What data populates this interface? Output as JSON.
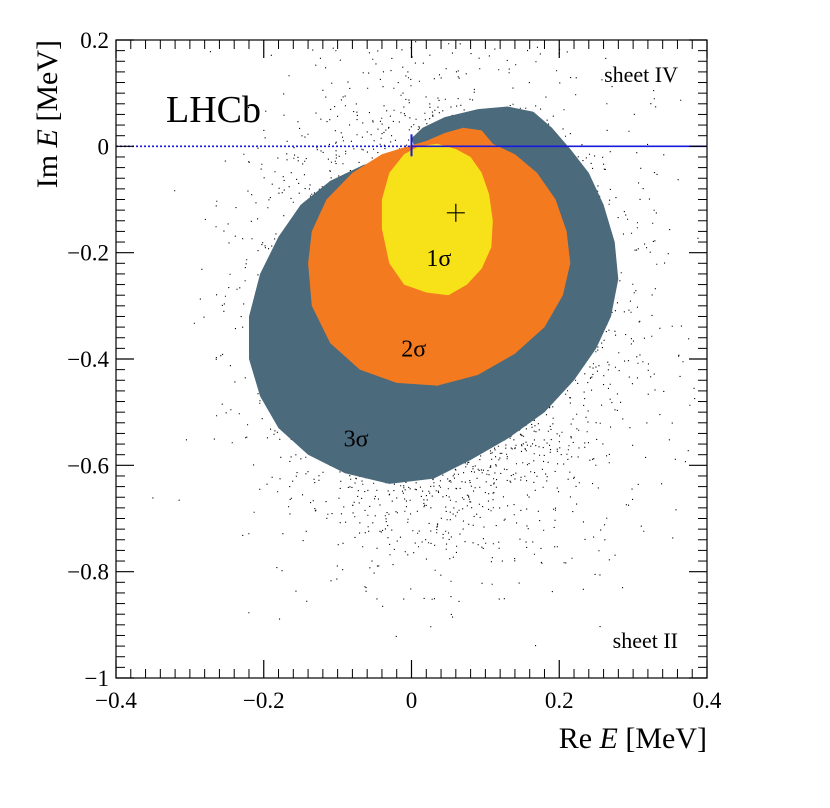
{
  "chart_data": {
    "type": "scatter",
    "title": "",
    "experiment_label": "LHCb",
    "xlabel_prefix": "Re ",
    "xlabel_var": "E",
    "xlabel_unit": " [MeV]",
    "ylabel_prefix": "Im ",
    "ylabel_var": "E",
    "ylabel_unit": " [MeV]",
    "xlim": [
      -0.4,
      0.4
    ],
    "ylim": [
      -1.0,
      0.2
    ],
    "x_ticks": [
      -0.4,
      -0.2,
      0,
      0.2,
      0.4
    ],
    "x_tick_labels": [
      "−0.4",
      "−0.2",
      "0",
      "0.2",
      "0.4"
    ],
    "y_ticks": [
      0.2,
      0,
      -0.2,
      -0.4,
      -0.6,
      -0.8,
      -1.0
    ],
    "y_tick_labels": [
      "0.2",
      "0",
      "−0.2",
      "−0.4",
      "−0.6",
      "−0.8",
      "−1"
    ],
    "sheet_labels": {
      "upper": "sheet IV",
      "lower": "sheet II"
    },
    "best_fit": {
      "x": 0.06,
      "y": -0.125
    },
    "threshold": {
      "x": 0.0,
      "y": 0.0
    },
    "cut_line": {
      "y": 0.0,
      "dotted_range": [
        -0.4,
        0.0
      ],
      "solid_range": [
        0.0,
        0.4
      ]
    },
    "contours": [
      {
        "name": "3σ",
        "label": "3σ",
        "color": "#4b6a7c",
        "label_pos": [
          -0.075,
          -0.565
        ],
        "points": [
          [
            -0.22,
            -0.4
          ],
          [
            -0.22,
            -0.32
          ],
          [
            -0.205,
            -0.24
          ],
          [
            -0.18,
            -0.17
          ],
          [
            -0.15,
            -0.11
          ],
          [
            -0.11,
            -0.065
          ],
          [
            -0.065,
            -0.035
          ],
          [
            -0.02,
            -0.02
          ],
          [
            0.005,
            -0.005
          ],
          [
            0.0,
            0.015
          ],
          [
            0.015,
            0.035
          ],
          [
            0.045,
            0.055
          ],
          [
            0.09,
            0.07
          ],
          [
            0.13,
            0.075
          ],
          [
            0.165,
            0.065
          ],
          [
            0.19,
            0.035
          ],
          [
            0.215,
            -0.005
          ],
          [
            0.24,
            -0.05
          ],
          [
            0.26,
            -0.11
          ],
          [
            0.275,
            -0.18
          ],
          [
            0.28,
            -0.25
          ],
          [
            0.27,
            -0.32
          ],
          [
            0.25,
            -0.38
          ],
          [
            0.22,
            -0.44
          ],
          [
            0.18,
            -0.5
          ],
          [
            0.13,
            -0.55
          ],
          [
            0.08,
            -0.59
          ],
          [
            0.03,
            -0.625
          ],
          [
            -0.03,
            -0.635
          ],
          [
            -0.09,
            -0.615
          ],
          [
            -0.14,
            -0.58
          ],
          [
            -0.18,
            -0.53
          ],
          [
            -0.205,
            -0.47
          ]
        ]
      },
      {
        "name": "2σ",
        "label": "2σ",
        "color": "#f47a20",
        "label_pos": [
          0.003,
          -0.395
        ],
        "points": [
          [
            -0.14,
            -0.22
          ],
          [
            -0.135,
            -0.16
          ],
          [
            -0.115,
            -0.1
          ],
          [
            -0.08,
            -0.05
          ],
          [
            -0.04,
            -0.015
          ],
          [
            -0.005,
            0.0
          ],
          [
            0.02,
            0.01
          ],
          [
            0.045,
            0.025
          ],
          [
            0.07,
            0.035
          ],
          [
            0.095,
            0.03
          ],
          [
            0.11,
            0.005
          ],
          [
            0.14,
            -0.015
          ],
          [
            0.17,
            -0.05
          ],
          [
            0.195,
            -0.1
          ],
          [
            0.21,
            -0.16
          ],
          [
            0.215,
            -0.22
          ],
          [
            0.205,
            -0.28
          ],
          [
            0.18,
            -0.34
          ],
          [
            0.14,
            -0.39
          ],
          [
            0.09,
            -0.43
          ],
          [
            0.035,
            -0.45
          ],
          [
            -0.02,
            -0.445
          ],
          [
            -0.07,
            -0.42
          ],
          [
            -0.11,
            -0.37
          ],
          [
            -0.135,
            -0.3
          ]
        ]
      },
      {
        "name": "1σ",
        "label": "1σ",
        "color": "#f7e21a",
        "label_pos": [
          0.037,
          -0.225
        ],
        "points": [
          [
            -0.04,
            -0.155
          ],
          [
            -0.04,
            -0.1
          ],
          [
            -0.03,
            -0.05
          ],
          [
            -0.01,
            -0.015
          ],
          [
            0.01,
            0.0
          ],
          [
            0.035,
            0.005
          ],
          [
            0.06,
            -0.005
          ],
          [
            0.08,
            -0.02
          ],
          [
            0.095,
            -0.05
          ],
          [
            0.105,
            -0.09
          ],
          [
            0.11,
            -0.14
          ],
          [
            0.108,
            -0.19
          ],
          [
            0.095,
            -0.23
          ],
          [
            0.075,
            -0.26
          ],
          [
            0.05,
            -0.28
          ],
          [
            0.02,
            -0.275
          ],
          [
            -0.01,
            -0.26
          ],
          [
            -0.03,
            -0.22
          ]
        ]
      }
    ],
    "scatter": {
      "center": [
        0.04,
        -0.32
      ],
      "spread": [
        0.115,
        0.2
      ],
      "clip_x": [
        -0.4,
        0.4
      ],
      "clip_y": [
        -1.0,
        0.2
      ],
      "color": "#000000"
    }
  }
}
